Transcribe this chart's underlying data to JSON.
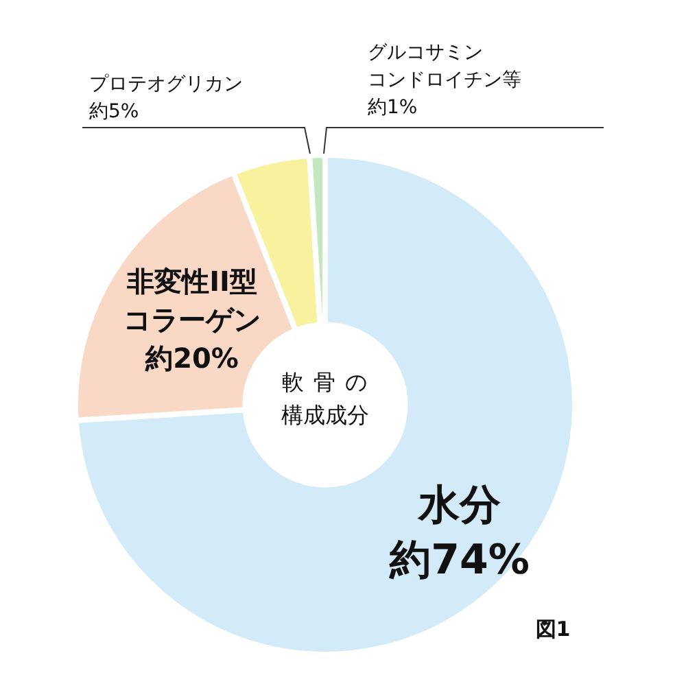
{
  "chart_data": {
    "type": "donut",
    "categories": [
      "水分",
      "非変性II型コラーゲン",
      "プロテオグリカン",
      "グルコサミンコンドロイチン等"
    ],
    "values": [
      74,
      20,
      5,
      1
    ],
    "colors": [
      "#d3eaf8",
      "#fad8c6",
      "#f8f29e",
      "#c2e8c0"
    ],
    "value_labels": [
      "約74%",
      "約20%",
      "約5%",
      "約1%"
    ],
    "legend": false,
    "annotations": [
      "軟骨の構成成分",
      "図1"
    ]
  }
}
